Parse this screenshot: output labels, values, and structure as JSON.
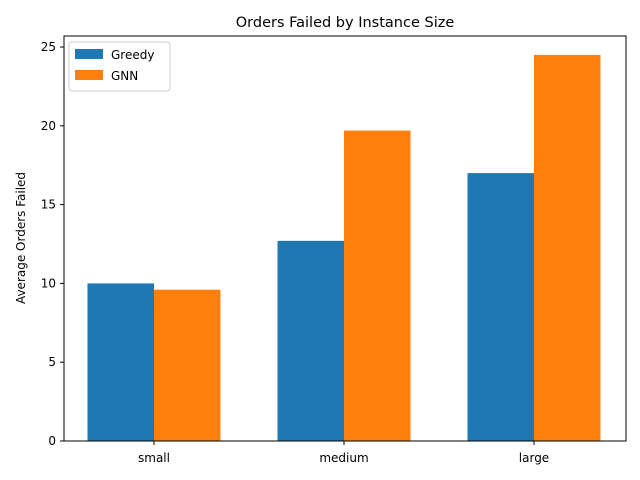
{
  "chart_data": {
    "type": "bar",
    "title": "Orders Failed by Instance Size",
    "xlabel": "",
    "ylabel": "Average Orders Failed",
    "categories": [
      "small",
      "medium",
      "large"
    ],
    "series": [
      {
        "name": "Greedy",
        "color": "#1f77b4",
        "values": [
          10.0,
          12.7,
          17.0
        ]
      },
      {
        "name": "GNN",
        "color": "#ff7f0e",
        "values": [
          9.6,
          19.7,
          24.5
        ]
      }
    ],
    "ylim": [
      0,
      25.7
    ],
    "yticks": [
      0,
      5,
      10,
      15,
      20,
      25
    ],
    "legend_position": "top-left",
    "grid": false
  }
}
